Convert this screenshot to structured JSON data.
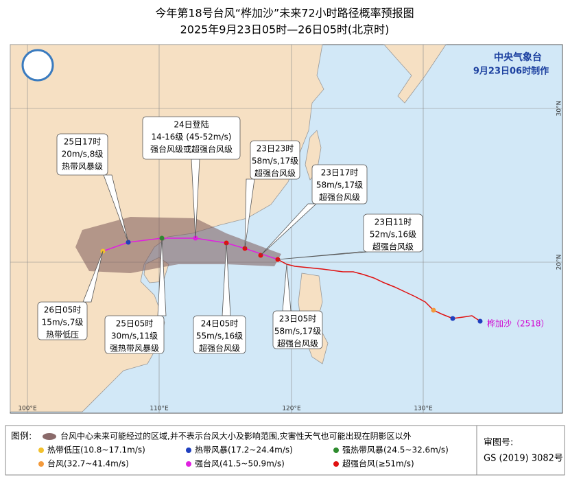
{
  "header": {
    "title": "今年第18号台风“桦加沙”未来72小时路径概率预报图",
    "subtitle": "2025年9月23日05时—26日05时(北京时)"
  },
  "agency": {
    "name": "中央气象台",
    "issued": "9月23日06时制作"
  },
  "storm_label": "桦加沙（2518）",
  "callouts": [
    {
      "lines": [
        "25日17时",
        "20m/s,8级",
        "热带风暴级"
      ]
    },
    {
      "lines": [
        "24日登陆",
        "14-16级 (45-52m/s)",
        "强台风级或超强台风级"
      ]
    },
    {
      "lines": [
        "23日23时",
        "58m/s,17级",
        "超强台风级"
      ]
    },
    {
      "lines": [
        "23日17时",
        "58m/s,17级",
        "超强台风级"
      ]
    },
    {
      "lines": [
        "23日11时",
        "52m/s,16级",
        "超强台风级"
      ]
    },
    {
      "lines": [
        "23日05时",
        "58m/s,17级",
        "超强台风级"
      ]
    },
    {
      "lines": [
        "24日05时",
        "55m/s,16级",
        "超强台风级"
      ]
    },
    {
      "lines": [
        "25日05时",
        "30m/s,11级",
        "强热带风暴级"
      ]
    },
    {
      "lines": [
        "26日05时",
        "15m/s,7级",
        "热带低压"
      ]
    }
  ],
  "axes": {
    "lon": [
      "100°E",
      "110°E",
      "120°E",
      "130°E"
    ],
    "lat": [
      "20°N",
      "30°N"
    ]
  },
  "legend": {
    "title": "图例:",
    "cone": "台风中心未来可能经过的区域,并不表示台风大小及影响范围,灾害性天气也可能出现在阴影区以外",
    "items": [
      {
        "label": "热带低压(10.8~17.1m/s)",
        "color": "#f2c12e"
      },
      {
        "label": "热带风暴(17.2~24.4m/s)",
        "color": "#1f3fbf"
      },
      {
        "label": "强热带风暴(24.5~32.6m/s)",
        "color": "#2e8b2e"
      },
      {
        "label": "台风(32.7~41.4m/s)",
        "color": "#f39a3c"
      },
      {
        "label": "强台风(41.5~50.9m/s)",
        "color": "#e020e0"
      },
      {
        "label": "超强台风(≥51m/s)",
        "color": "#e01010"
      }
    ]
  },
  "approval": {
    "label": "审图号:",
    "number": "GS (2019) 3082号"
  }
}
